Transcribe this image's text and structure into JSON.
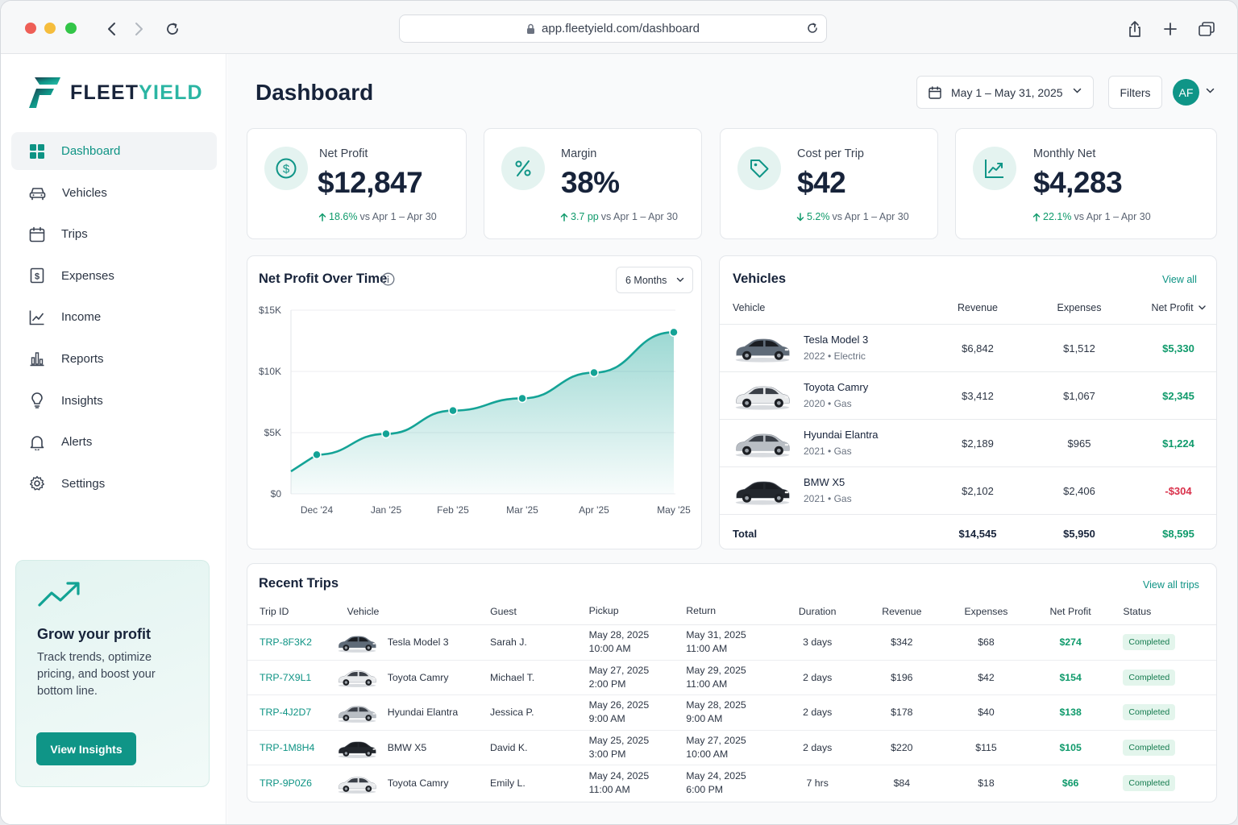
{
  "browser": {
    "url": "app.fleetyield.com/dashboard"
  },
  "brand": {
    "name_primary": "FLEET",
    "name_accent": "YIELD",
    "accent_color": "#0f9587"
  },
  "sidebar": {
    "items": [
      {
        "label": "Dashboard",
        "icon": "grid-icon",
        "active": true
      },
      {
        "label": "Vehicles",
        "icon": "car-icon"
      },
      {
        "label": "Trips",
        "icon": "calendar-icon"
      },
      {
        "label": "Expenses",
        "icon": "dollar-receipt-icon"
      },
      {
        "label": "Income",
        "icon": "trend-line-icon"
      },
      {
        "label": "Reports",
        "icon": "bar-chart-icon"
      },
      {
        "label": "Insights",
        "icon": "lightbulb-icon"
      },
      {
        "label": "Alerts",
        "icon": "bell-icon"
      },
      {
        "label": "Settings",
        "icon": "gear-icon"
      }
    ]
  },
  "promo": {
    "title": "Grow your profit",
    "text": "Track trends, optimize pricing, and boost your bottom line.",
    "button": "View Insights"
  },
  "header": {
    "title": "Dashboard",
    "date_range": "May 1 – May 31, 2025",
    "filters_label": "Filters",
    "avatar_initials": "AF"
  },
  "kpis": [
    {
      "label": "Net Profit",
      "value": "$12,847",
      "delta": "18.6%",
      "direction": "up",
      "compare": "vs Apr 1 – Apr 30",
      "icon": "dollar-circle-icon"
    },
    {
      "label": "Margin",
      "value": "38%",
      "delta": "3.7 pp",
      "direction": "up",
      "compare": "vs Apr 1 – Apr 30",
      "icon": "percent-icon"
    },
    {
      "label": "Cost per Trip",
      "value": "$42",
      "delta": "5.2%",
      "direction": "down",
      "compare": "vs Apr 1 – Apr 30",
      "icon": "tag-icon"
    },
    {
      "label": "Monthly Net",
      "value": "$4,283",
      "delta": "22.1%",
      "direction": "up",
      "compare": "vs Apr 1 – Apr 30",
      "icon": "chart-up-icon"
    }
  ],
  "net_profit_chart": {
    "title": "Net Profit Over Time",
    "range_select": "6 Months"
  },
  "chart_data": {
    "type": "area",
    "title": "Net Profit Over Time",
    "categories": [
      "Dec '24",
      "Jan '25",
      "Feb '25",
      "Mar '25",
      "Apr '25",
      "May '25"
    ],
    "x": [
      0,
      1,
      2,
      3,
      4,
      5
    ],
    "values": [
      3200,
      4900,
      6800,
      7800,
      9900,
      13200
    ],
    "ylim": [
      0,
      15000
    ],
    "y_ticks": [
      "$0",
      "$5K",
      "$10K",
      "$15K"
    ],
    "y_tick_values": [
      0,
      5000,
      10000,
      15000
    ],
    "grid": true,
    "color": "#14a396"
  },
  "vehicles": {
    "title": "Vehicles",
    "view_all": "View all",
    "columns": [
      "Vehicle",
      "Revenue",
      "Expenses",
      "Net Profit"
    ],
    "rows": [
      {
        "name": "Tesla Model 3",
        "year": "2022",
        "fuel": "Electric",
        "revenue": "$6,842",
        "expenses": "$1,512",
        "net": "$5,330",
        "negative": false,
        "color": "#5f6b78"
      },
      {
        "name": "Toyota Camry",
        "year": "2020",
        "fuel": "Gas",
        "revenue": "$3,412",
        "expenses": "$1,067",
        "net": "$2,345",
        "negative": false,
        "color": "#e8eaec"
      },
      {
        "name": "Hyundai Elantra",
        "year": "2021",
        "fuel": "Gas",
        "revenue": "$2,189",
        "expenses": "$965",
        "net": "$1,224",
        "negative": false,
        "color": "#b9bec4"
      },
      {
        "name": "BMW X5",
        "year": "2021",
        "fuel": "Gas",
        "revenue": "$2,102",
        "expenses": "$2,406",
        "net": "-$304",
        "negative": true,
        "color": "#23272d"
      }
    ],
    "total": {
      "label": "Total",
      "revenue": "$14,545",
      "expenses": "$5,950",
      "net": "$8,595"
    }
  },
  "trips": {
    "title": "Recent Trips",
    "view_all": "View all trips",
    "columns": [
      "Trip ID",
      "Vehicle",
      "Guest",
      "Pickup",
      "Return",
      "Duration",
      "Revenue",
      "Expenses",
      "Net Profit",
      "Status"
    ],
    "rows": [
      {
        "id": "TRP-8F3K2",
        "vehicle": "Tesla Model 3",
        "guest": "Sarah J.",
        "pickup_date": "May 28, 2025",
        "pickup_time": "10:00 AM",
        "return_date": "May 31, 2025",
        "return_time": "11:00 AM",
        "duration": "3 days",
        "revenue": "$342",
        "expenses": "$68",
        "net": "$274",
        "status": "Completed",
        "color": "#5f6b78"
      },
      {
        "id": "TRP-7X9L1",
        "vehicle": "Toyota Camry",
        "guest": "Michael T.",
        "pickup_date": "May 27, 2025",
        "pickup_time": "2:00 PM",
        "return_date": "May 29, 2025",
        "return_time": "11:00 AM",
        "duration": "2 days",
        "revenue": "$196",
        "expenses": "$42",
        "net": "$154",
        "status": "Completed",
        "color": "#e8eaec"
      },
      {
        "id": "TRP-4J2D7",
        "vehicle": "Hyundai Elantra",
        "guest": "Jessica P.",
        "pickup_date": "May 26, 2025",
        "pickup_time": "9:00 AM",
        "return_date": "May 28, 2025",
        "return_time": "9:00 AM",
        "duration": "2 days",
        "revenue": "$178",
        "expenses": "$40",
        "net": "$138",
        "status": "Completed",
        "color": "#b9bec4"
      },
      {
        "id": "TRP-1M8H4",
        "vehicle": "BMW X5",
        "guest": "David K.",
        "pickup_date": "May 25, 2025",
        "pickup_time": "3:00 PM",
        "return_date": "May 27, 2025",
        "return_time": "10:00 AM",
        "duration": "2 days",
        "revenue": "$220",
        "expenses": "$115",
        "net": "$105",
        "status": "Completed",
        "color": "#23272d"
      },
      {
        "id": "TRP-9P0Z6",
        "vehicle": "Toyota Camry",
        "guest": "Emily L.",
        "pickup_date": "May 24, 2025",
        "pickup_time": "11:00 AM",
        "return_date": "May 24, 2025",
        "return_time": "6:00 PM",
        "duration": "7 hrs",
        "revenue": "$84",
        "expenses": "$18",
        "net": "$66",
        "status": "Completed",
        "color": "#e8eaec"
      }
    ]
  }
}
